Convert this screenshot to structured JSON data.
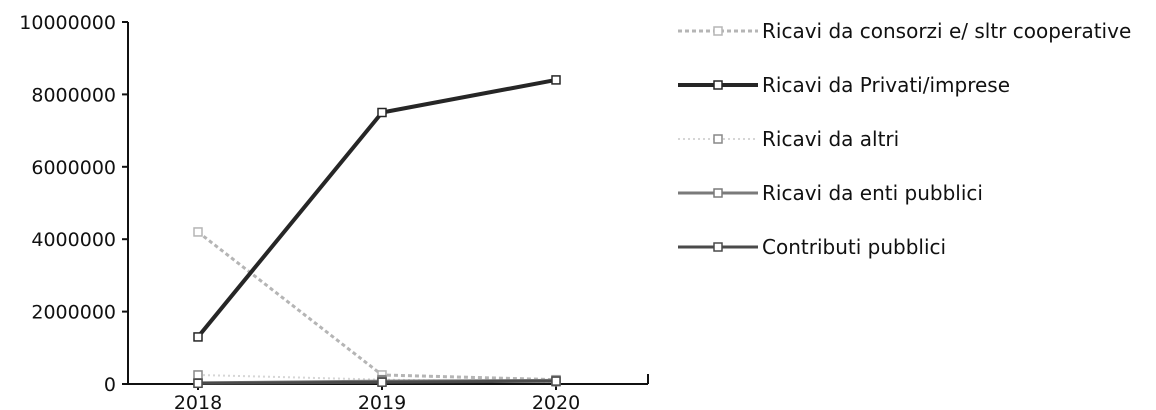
{
  "chart_data": {
    "type": "line",
    "categories": [
      "2018",
      "2019",
      "2020"
    ],
    "ylim": [
      0,
      10000000
    ],
    "yticks": [
      0,
      2000000,
      4000000,
      6000000,
      8000000,
      10000000
    ],
    "ytick_labels": [
      "0",
      "2000000",
      "4000000",
      "6000000",
      "8000000",
      "10000000"
    ],
    "grid": false,
    "legend_position": "right",
    "series": [
      {
        "name": "Ricavi da consorzi e/ sltr cooperative",
        "values": [
          4200000,
          250000,
          120000
        ],
        "color": "#b5b5b5",
        "dash": "4 3",
        "width": 3
      },
      {
        "name": "Ricavi da Privati/imprese",
        "values": [
          1300000,
          7500000,
          8400000
        ],
        "color": "#262626",
        "dash": "",
        "width": 4
      },
      {
        "name": "Ricavi da altri",
        "values": [
          250000,
          120000,
          60000
        ],
        "color": "#d6d6d6",
        "dash": "2 3",
        "width": 2
      },
      {
        "name": "Ricavi da enti pubblici",
        "values": [
          30000,
          80000,
          100000
        ],
        "color": "#7a7a7a",
        "dash": "",
        "width": 3
      },
      {
        "name": "Contributi pubblici",
        "values": [
          20000,
          50000,
          80000
        ],
        "color": "#4a4a4a",
        "dash": "",
        "width": 3
      }
    ]
  }
}
